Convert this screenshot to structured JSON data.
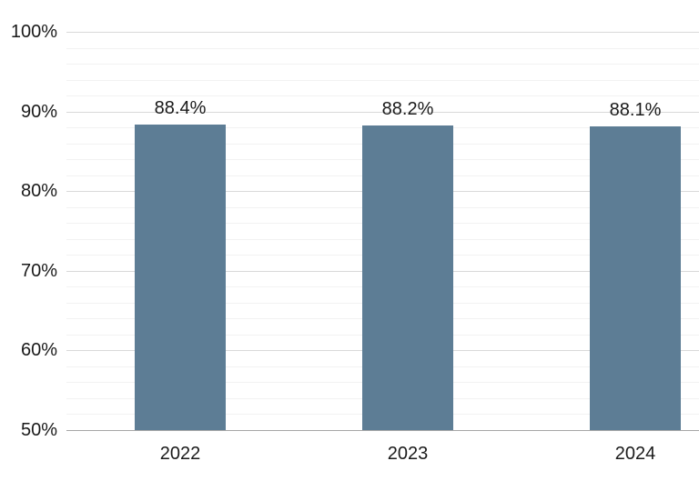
{
  "chart_data": {
    "type": "bar",
    "title": "",
    "categories": [
      "2022",
      "2023",
      "2024"
    ],
    "values": [
      88.4,
      88.2,
      88.1
    ],
    "bar_labels": [
      "88.4%",
      "88.2%",
      "88.1%"
    ],
    "ylim": [
      50,
      100
    ],
    "y_major_ticks": [
      100,
      90,
      80,
      70,
      60,
      50
    ],
    "y_tick_labels": [
      "100%",
      "90%",
      "80%",
      "70%",
      "60%",
      "50%"
    ],
    "y_minor_step": 2,
    "y_major_step": 10,
    "grid": true,
    "legend": false,
    "xlabel": "",
    "ylabel": "",
    "colors": {
      "bar": "#5d7d95",
      "major_gridline": "#d9d9d9",
      "minor_gridline": "#f2f2f2",
      "axis_line": "#a6a6a6",
      "text": "#1a1a1a",
      "background": "#ffffff"
    }
  }
}
